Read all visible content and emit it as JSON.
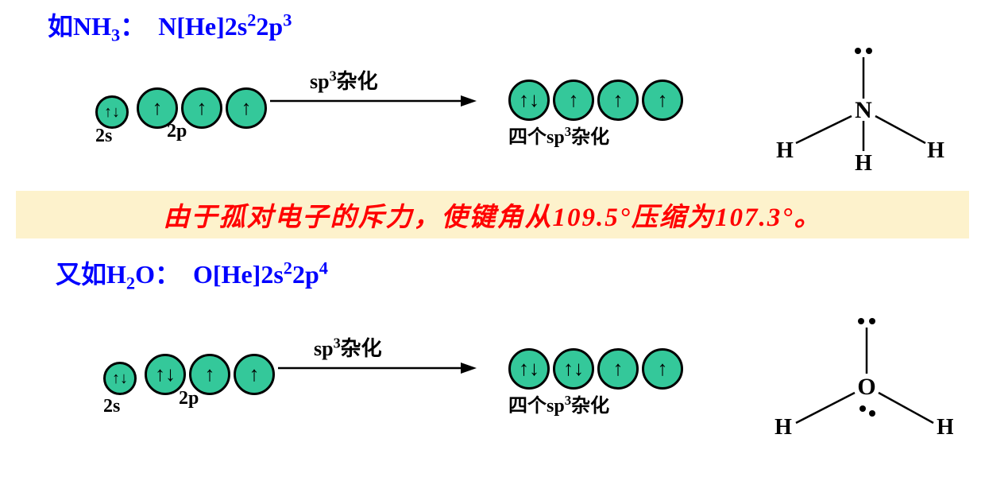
{
  "colors": {
    "title": "#0000ff",
    "orbital_fill": "#34c89a",
    "orbital_border": "#000000",
    "arrow_color": "#000000",
    "highlight_bg": "#fdf2cc",
    "highlight_text": "#ff0000",
    "molecule_text": "#000000"
  },
  "orbital_size": {
    "small": 36,
    "large": 46
  },
  "line1": {
    "prefix": "如",
    "molecule": "NH",
    "molecule_sub": "3",
    "config_element": "N[He]2s",
    "sup1": "2",
    "mid": "2p",
    "sup2": "3"
  },
  "arrow_label_parts": {
    "prefix": "sp",
    "sup": "3",
    "suffix": "杂化"
  },
  "hyb_caption_parts": {
    "prefix": "四个sp",
    "sup": "3",
    "suffix": "杂化"
  },
  "nh3": {
    "left_orbitals": [
      "↑↓",
      "↑",
      "↑",
      "↑"
    ],
    "right_orbitals": [
      "↑↓",
      "↑",
      "↑",
      "↑"
    ],
    "label_2s": "2s",
    "label_2p": "2p",
    "atoms": {
      "center": "N",
      "h1": "H",
      "h2": "H",
      "h3": "H"
    }
  },
  "highlight_text": "由于孤对电子的斥力，使键角从109.5°压缩为107.3°。",
  "line2": {
    "prefix": "又如",
    "molecule": "H",
    "molecule_sub": "2",
    "molecule2": "O",
    "config_element": "O[He]2s",
    "sup1": "2",
    "mid": "2p",
    "sup2": "4"
  },
  "h2o": {
    "left_orbitals": [
      "↑↓",
      "↑↓",
      "↑",
      "↑"
    ],
    "right_orbitals": [
      "↑↓",
      "↑↓",
      "↑",
      "↑"
    ],
    "label_2s": "2s",
    "label_2p": "2p",
    "atoms": {
      "center": "O",
      "h1": "H",
      "h2": "H"
    }
  }
}
